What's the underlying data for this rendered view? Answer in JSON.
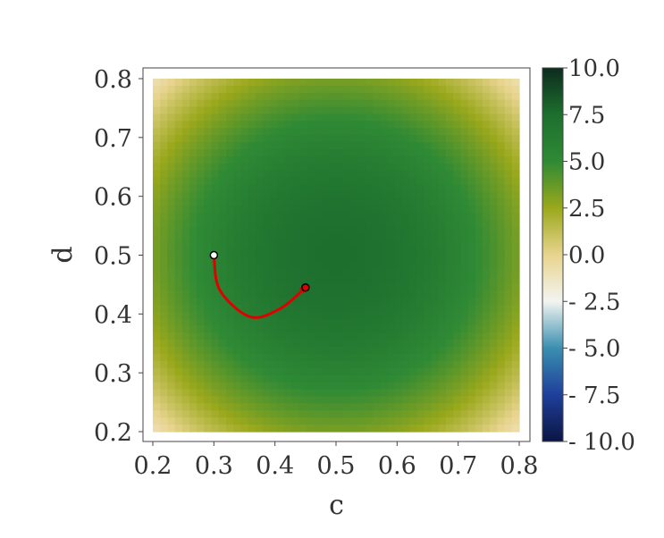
{
  "chart_data": {
    "type": "heatmap",
    "title": "",
    "xlabel": "c",
    "ylabel": "d",
    "xlim": [
      0.2,
      0.8
    ],
    "ylim": [
      0.2,
      0.8
    ],
    "xticks": [
      0.2,
      0.3,
      0.4,
      0.5,
      0.6,
      0.7,
      0.8
    ],
    "yticks": [
      0.2,
      0.3,
      0.4,
      0.5,
      0.6,
      0.7,
      0.8
    ],
    "xtick_labels": [
      "0.2",
      "0.3",
      "0.4",
      "0.5",
      "0.6",
      "0.7",
      "0.8"
    ],
    "ytick_labels": [
      "0.2",
      "0.3",
      "0.4",
      "0.5",
      "0.6",
      "0.7",
      "0.8"
    ],
    "field": {
      "description_of_shape": "radially symmetric peak",
      "center": [
        0.5,
        0.5
      ],
      "peak_value": 7.5,
      "corner_value": -1.0
    },
    "colorbar": {
      "range": [
        -10.0,
        10.0
      ],
      "ticks": [
        10.0,
        7.5,
        5.0,
        2.5,
        0.0,
        -2.5,
        -5.0,
        -7.5,
        -10.0
      ],
      "tick_labels": [
        "10.0",
        "7.5",
        "5.0",
        "2.5",
        "0.0",
        "- 2.5",
        "- 5.0",
        "- 7.5",
        "- 10.0"
      ],
      "colormap": "gist_earth_r-like",
      "colors": [
        "#0b1544",
        "#1f3f9a",
        "#3a8fb0",
        "#f3f4f1",
        "#e8d48e",
        "#9aa81c",
        "#2f8a35",
        "#1d6f2e",
        "#0d2b1e"
      ]
    },
    "path": {
      "color": "#e00000",
      "points": [
        [
          0.3,
          0.5
        ],
        [
          0.31,
          0.44
        ],
        [
          0.36,
          0.395
        ],
        [
          0.41,
          0.41
        ],
        [
          0.45,
          0.445
        ]
      ],
      "start": [
        0.3,
        0.5
      ],
      "end": [
        0.45,
        0.445
      ],
      "start_marker_color": "#ffffff",
      "end_marker_color": "#e00000"
    },
    "grid": false,
    "legend": "none"
  }
}
